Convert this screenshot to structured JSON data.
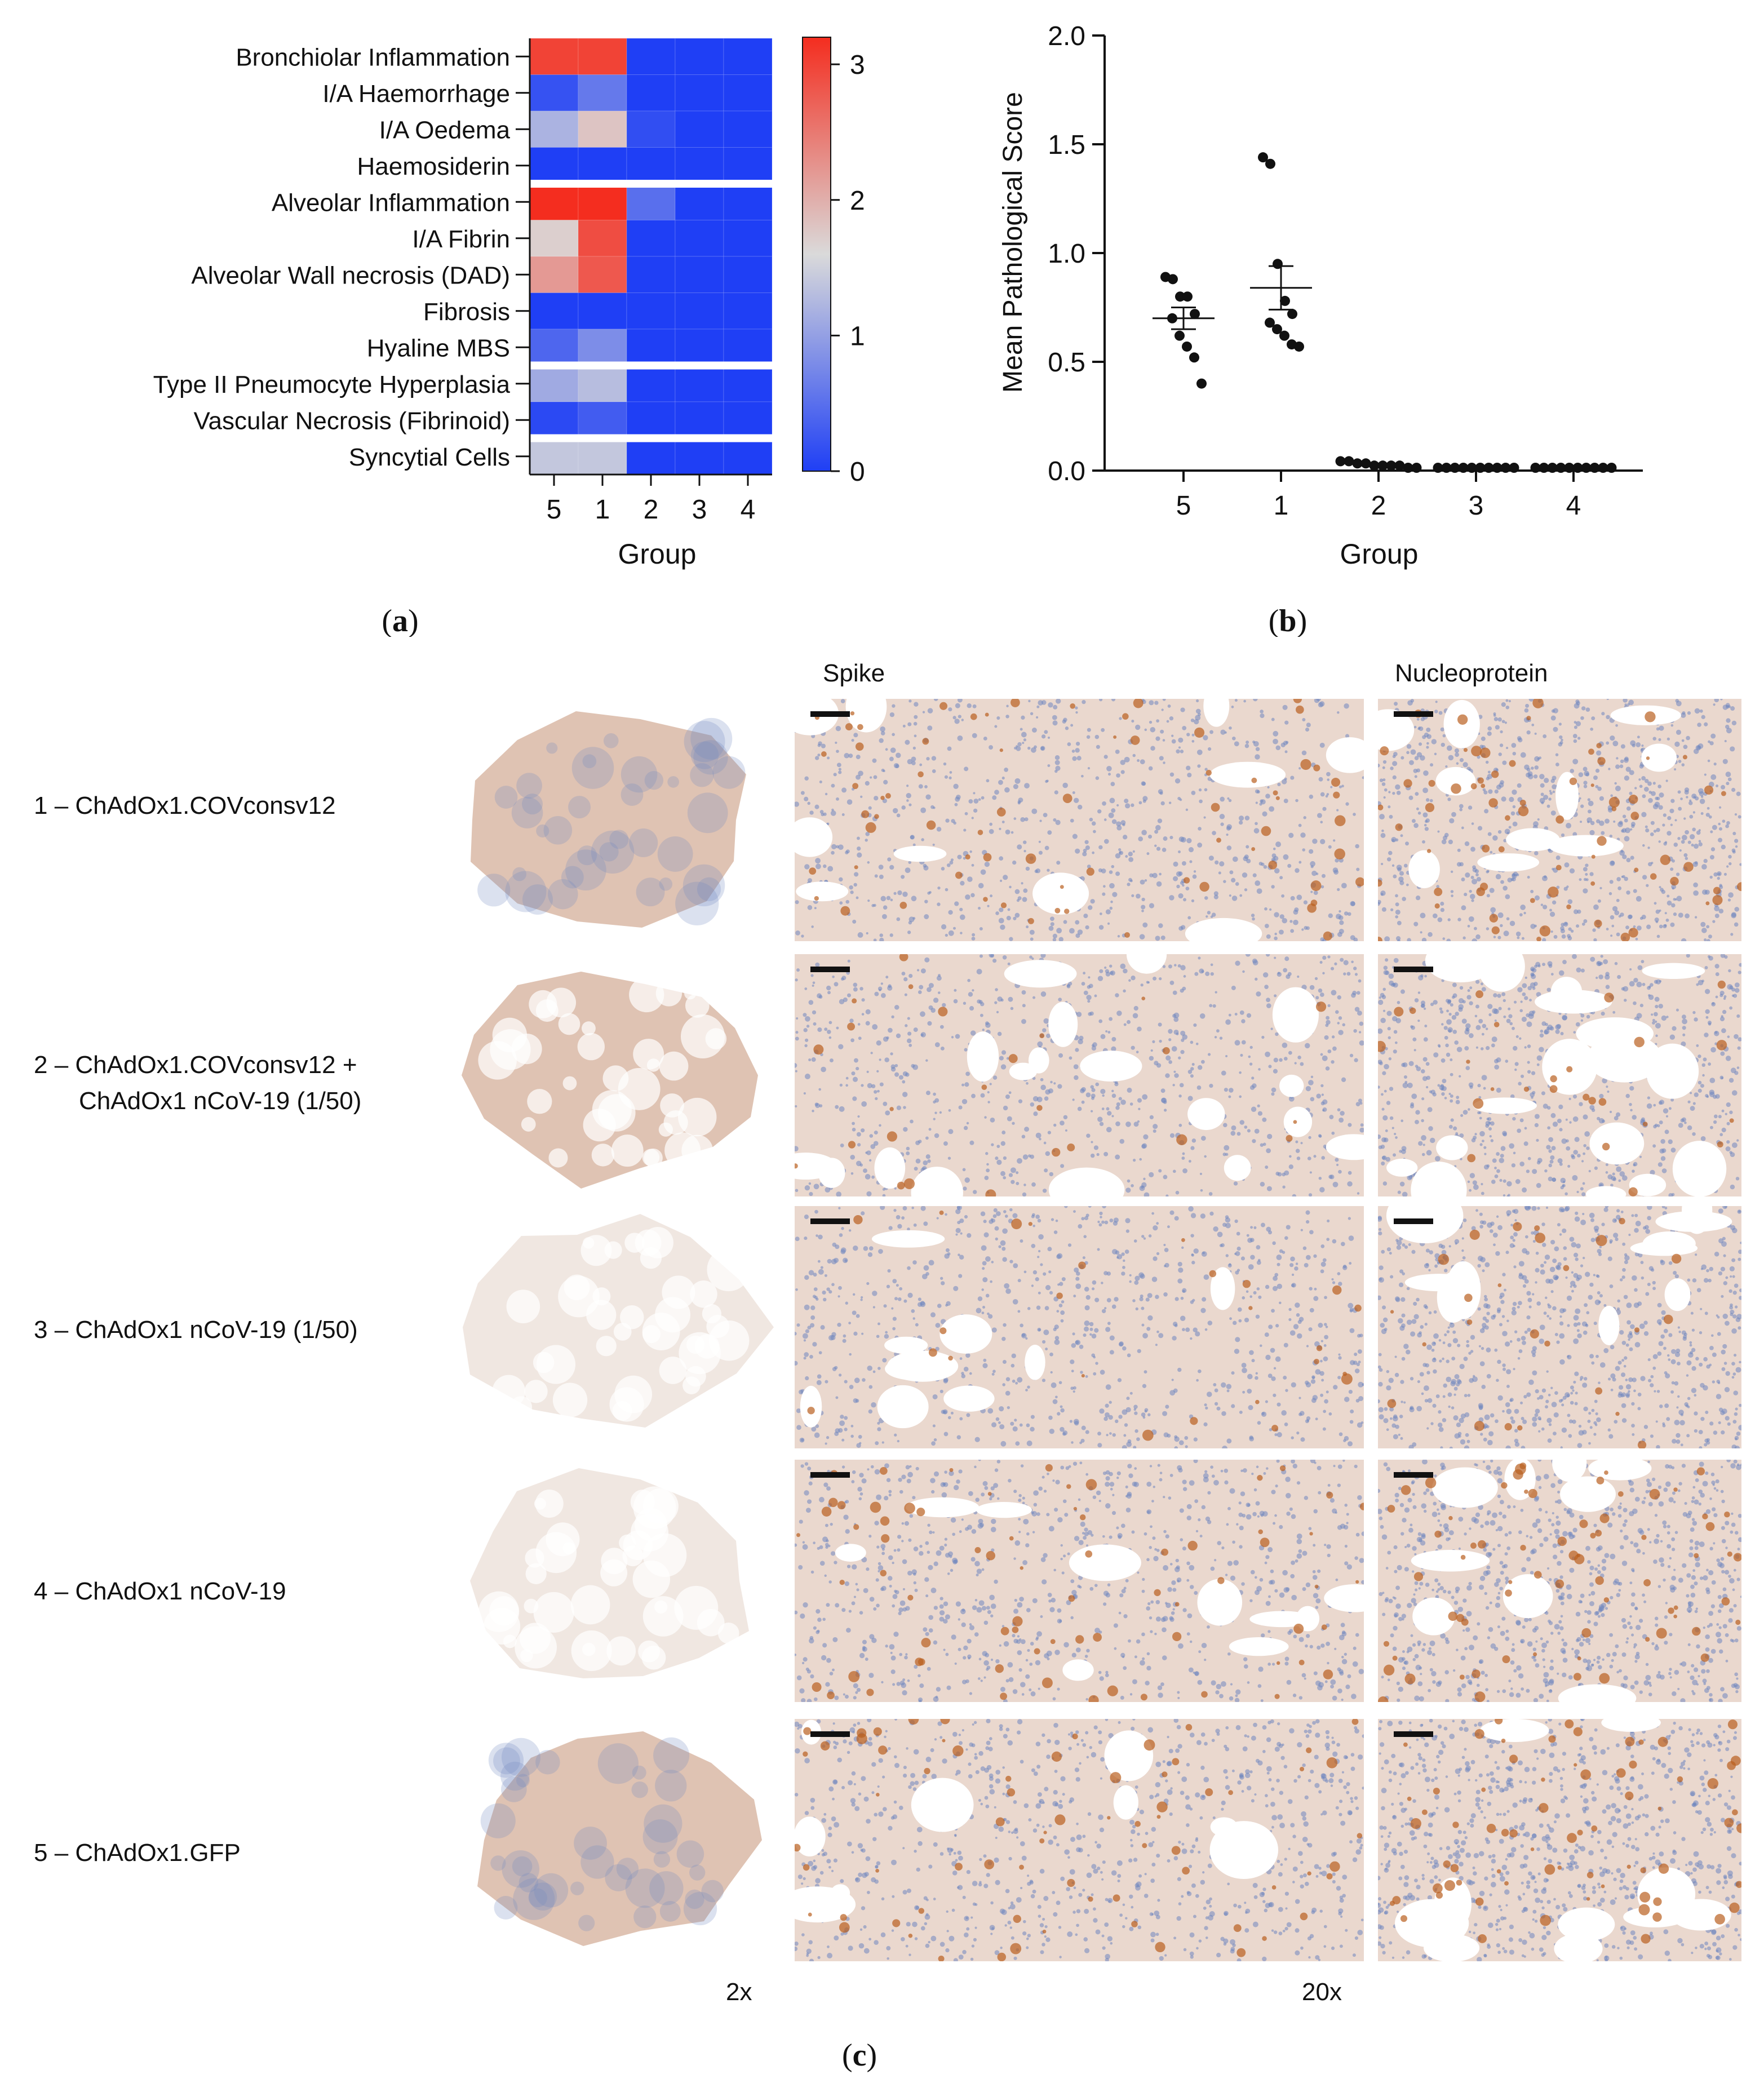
{
  "panels": {
    "a": "a",
    "b": "b",
    "c": "c"
  },
  "chart_data": [
    {
      "type": "heatmap",
      "rows": [
        "Bronchiolar Inflammation",
        "I/A Haemorrhage",
        "I/A Oedema",
        "Haemosiderin",
        "Alveolar Inflammation",
        "I/A Fibrin",
        "Alveolar Wall necrosis (DAD)",
        "Fibrosis",
        "Hyaline MBS",
        "Type II Pneumocyte Hyperplasia",
        "Vascular Necrosis (Fibrinoid)",
        "Syncytial Cells"
      ],
      "columns": [
        "5",
        "1",
        "2",
        "3",
        "4"
      ],
      "values": [
        [
          3.0,
          3.0,
          0,
          0,
          0
        ],
        [
          0.2,
          0.6,
          0,
          0,
          0
        ],
        [
          1.2,
          1.8,
          0.15,
          0,
          0
        ],
        [
          0,
          0,
          0,
          0,
          0
        ],
        [
          3.4,
          3.4,
          0.5,
          0,
          0
        ],
        [
          1.7,
          2.9,
          0,
          0,
          0
        ],
        [
          2.2,
          2.8,
          0,
          0,
          0
        ],
        [
          0,
          0,
          0,
          0,
          0
        ],
        [
          0.4,
          0.8,
          0,
          0,
          0
        ],
        [
          1.1,
          1.3,
          0,
          0,
          0
        ],
        [
          0.1,
          0.3,
          0,
          0,
          0
        ],
        [
          1.4,
          1.4,
          0,
          0,
          0
        ]
      ],
      "group_breaks_after_row": [
        3,
        8,
        10
      ],
      "xlabel": "Group",
      "colorbar": {
        "min": 0,
        "max": 3.2,
        "ticks": [
          "0",
          "1",
          "2",
          "3"
        ],
        "low": "#1f3ff5",
        "mid": "#dadada",
        "high": "#f42d1f"
      }
    },
    {
      "type": "scatter",
      "categories": [
        "5",
        "1",
        "2",
        "3",
        "4"
      ],
      "points": [
        [
          0.89,
          0.88,
          0.8,
          0.8,
          0.72,
          0.7,
          0.62,
          0.57,
          0.52,
          0.4
        ],
        [
          1.44,
          1.41,
          0.95,
          0.78,
          0.72,
          0.68,
          0.65,
          0.62,
          0.58,
          0.57
        ],
        [
          0.03,
          0.03,
          0.02,
          0.02,
          0.01,
          0.01,
          0.01,
          0.01,
          0.0,
          0.0
        ],
        [
          0,
          0,
          0,
          0,
          0,
          0,
          0,
          0,
          0,
          0
        ],
        [
          0,
          0,
          0,
          0,
          0,
          0,
          0,
          0,
          0,
          0
        ]
      ],
      "mean": [
        0.7,
        0.84,
        0.01,
        0,
        0
      ],
      "sem": [
        0.05,
        0.1,
        0.005,
        0,
        0
      ],
      "ylabel": "Mean Pathological Score",
      "xlabel": "Group",
      "ylim": [
        0,
        2.0
      ],
      "yticks": [
        "0.0",
        "0.5",
        "1.0",
        "1.5",
        "2.0"
      ]
    }
  ],
  "histology": {
    "column_titles": [
      "Spike",
      "Nucleoprotein"
    ],
    "magnifications": [
      "2x",
      "20x"
    ],
    "rows": [
      {
        "line1": "1 – ChAdOx1.COVconsv12",
        "line2": ""
      },
      {
        "line1": "2 – ChAdOx1.COVconsv12 +",
        "line2": "ChAdOx1 nCoV-19 (1/50)"
      },
      {
        "line1": "3 – ChAdOx1 nCoV-19 (1/50)",
        "line2": ""
      },
      {
        "line1": "4 – ChAdOx1 nCoV-19",
        "line2": ""
      },
      {
        "line1": "5 – ChAdOx1.GFP",
        "line2": ""
      }
    ],
    "tissue_colors": {
      "stroma": "#d9b8a6",
      "nuclei": "#6f86bf",
      "stain": "#b9601f",
      "pale": "#ede3dc"
    }
  }
}
